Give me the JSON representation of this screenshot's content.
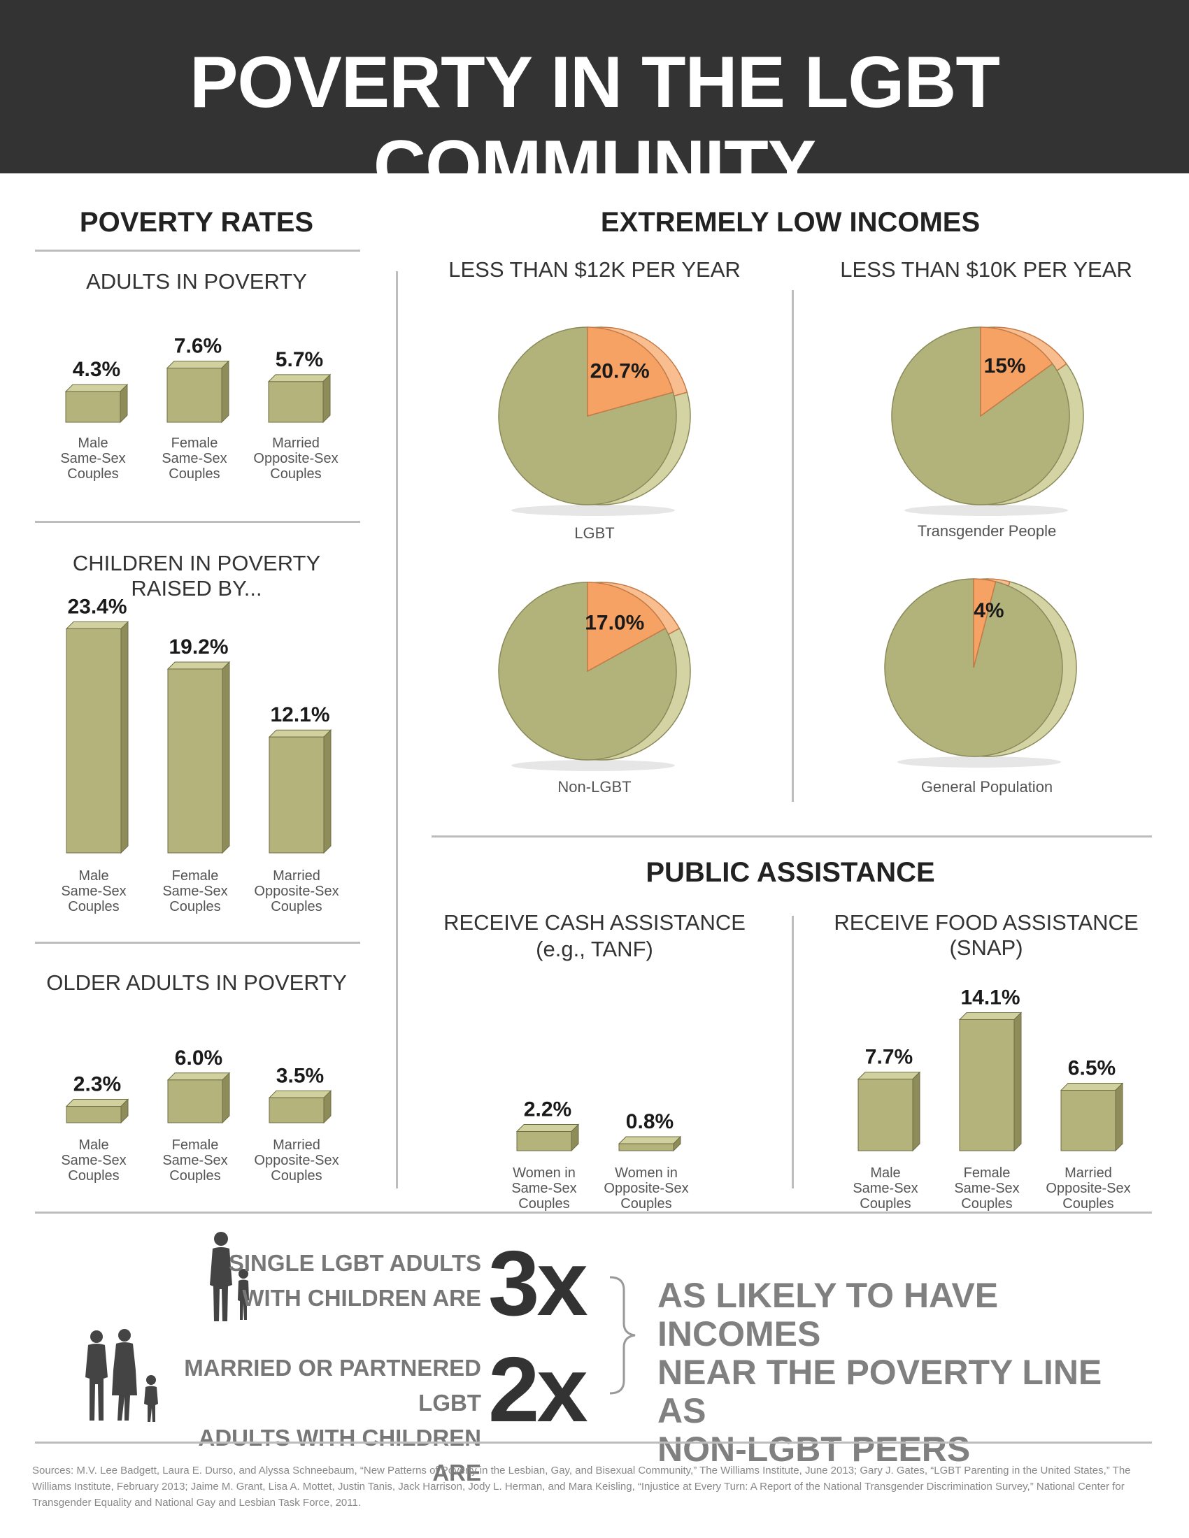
{
  "header": {
    "title": "POVERTY IN THE LGBT COMMUNITY"
  },
  "poverty_rates": {
    "title": "POVERTY RATES",
    "adults_title": "ADULTS IN POVERTY",
    "children_title": "CHILDREN IN POVERTY RAISED BY...",
    "older_title": "OLDER ADULTS IN POVERTY"
  },
  "low_incomes": {
    "title": "EXTREMELY LOW INCOMES",
    "col1_title": "LESS THAN $12K PER YEAR",
    "col2_title": "LESS THAN $10K PER YEAR"
  },
  "public_assistance": {
    "title": "PUBLIC ASSISTANCE",
    "cash_title_1": "RECEIVE CASH ASSISTANCE",
    "cash_title_2": "(e.g., TANF)",
    "food_title": "RECEIVE FOOD ASSISTANCE (SNAP)"
  },
  "comparison": {
    "row1_line1": "SINGLE LGBT ADULTS",
    "row1_line2": "WITH CHILDREN ARE",
    "row1_multiplier": "3x",
    "row2_line1": "MARRIED OR PARTNERED LGBT",
    "row2_line2": "ADULTS WITH CHILDREN ARE",
    "row2_multiplier": "2x",
    "statement_line1": "AS LIKELY TO HAVE INCOMES",
    "statement_line2": "NEAR THE POVERTY LINE AS",
    "statement_line3": "NON-LGBT PEERS"
  },
  "sources": "Sources: M.V. Lee Badgett, Laura E. Durso, and Alyssa Schneebaum, “New Patterns of Poverty in the Lesbian, Gay, and Bisexual Community,” The Williams Institute, June 2013; Gary J. Gates, “LGBT Parenting in the United States,” The Williams Institute, February 2013; Jaime M. Grant, Lisa A. Mottet, Justin Tanis, Jack Harrison, Jody L. Herman, and Mara Keisling, “Injustice at Every Turn: A Report of the National Transgender Discrimination Survey,” National Center for Transgender Equality and National Gay and Lesbian Task Force, 2011.",
  "colors": {
    "header_bg": "#333333",
    "bar_front": "#b4b37c",
    "bar_side": "#8e8d5a",
    "bar_top": "#d1d09f",
    "pie_main": "#b2b27b",
    "pie_side": "#d3d3a3",
    "pie_highlight": "#f5a264",
    "pie_highlight_side": "#f8be8f"
  },
  "chart_data": [
    {
      "type": "bar",
      "title": "ADULTS IN POVERTY",
      "categories": [
        "Male Same-Sex Couples",
        "Female Same-Sex Couples",
        "Married Opposite-Sex Couples"
      ],
      "category_lines": [
        [
          "Male",
          "Same-Sex",
          "Couples"
        ],
        [
          "Female",
          "Same-Sex",
          "Couples"
        ],
        [
          "Married",
          "Opposite-Sex",
          "Couples"
        ]
      ],
      "values": [
        4.3,
        7.6,
        5.7
      ],
      "value_labels": [
        "4.3%",
        "7.6%",
        "5.7%"
      ]
    },
    {
      "type": "bar",
      "title": "CHILDREN IN POVERTY RAISED BY...",
      "categories": [
        "Male Same-Sex Couples",
        "Female Same-Sex Couples",
        "Married Opposite-Sex Couples"
      ],
      "category_lines": [
        [
          "Male",
          "Same-Sex",
          "Couples"
        ],
        [
          "Female",
          "Same-Sex",
          "Couples"
        ],
        [
          "Married",
          "Opposite-Sex",
          "Couples"
        ]
      ],
      "values": [
        23.4,
        19.2,
        12.1
      ],
      "value_labels": [
        "23.4%",
        "19.2%",
        "12.1%"
      ]
    },
    {
      "type": "bar",
      "title": "OLDER ADULTS IN POVERTY",
      "categories": [
        "Male Same-Sex Couples",
        "Female Same-Sex Couples",
        "Married Opposite-Sex Couples"
      ],
      "category_lines": [
        [
          "Male",
          "Same-Sex",
          "Couples"
        ],
        [
          "Female",
          "Same-Sex",
          "Couples"
        ],
        [
          "Married",
          "Opposite-Sex",
          "Couples"
        ]
      ],
      "values": [
        2.3,
        6.0,
        3.5
      ],
      "value_labels": [
        "2.3%",
        "6.0%",
        "3.5%"
      ]
    },
    {
      "type": "pie",
      "title": "LESS THAN $12K PER YEAR",
      "label": "LGBT",
      "value": 20.7,
      "value_label": "20.7%"
    },
    {
      "type": "pie",
      "title": "LESS THAN $12K PER YEAR",
      "label": "Non-LGBT",
      "value": 17.0,
      "value_label": "17.0%"
    },
    {
      "type": "pie",
      "title": "LESS THAN $10K PER YEAR",
      "label": "Transgender People",
      "value": 15,
      "value_label": "15%"
    },
    {
      "type": "pie",
      "title": "LESS THAN $10K PER YEAR",
      "label": "General Population",
      "value": 4,
      "value_label": "4%"
    },
    {
      "type": "bar",
      "title": "RECEIVE CASH ASSISTANCE (e.g., TANF)",
      "categories": [
        "Women in Same-Sex Couples",
        "Women in Opposite-Sex Couples"
      ],
      "category_lines": [
        [
          "Women in",
          "Same-Sex",
          "Couples"
        ],
        [
          "Women in",
          "Opposite-Sex",
          "Couples"
        ]
      ],
      "values": [
        2.2,
        0.8
      ],
      "value_labels": [
        "2.2%",
        "0.8%"
      ]
    },
    {
      "type": "bar",
      "title": "RECEIVE FOOD ASSISTANCE (SNAP)",
      "categories": [
        "Male Same-Sex Couples",
        "Female Same-Sex Couples",
        "Married Opposite-Sex Couples"
      ],
      "category_lines": [
        [
          "Male",
          "Same-Sex",
          "Couples"
        ],
        [
          "Female",
          "Same-Sex",
          "Couples"
        ],
        [
          "Married",
          "Opposite-Sex",
          "Couples"
        ]
      ],
      "values": [
        7.7,
        14.1,
        6.5
      ],
      "value_labels": [
        "7.7%",
        "14.1%",
        "6.5%"
      ]
    }
  ]
}
